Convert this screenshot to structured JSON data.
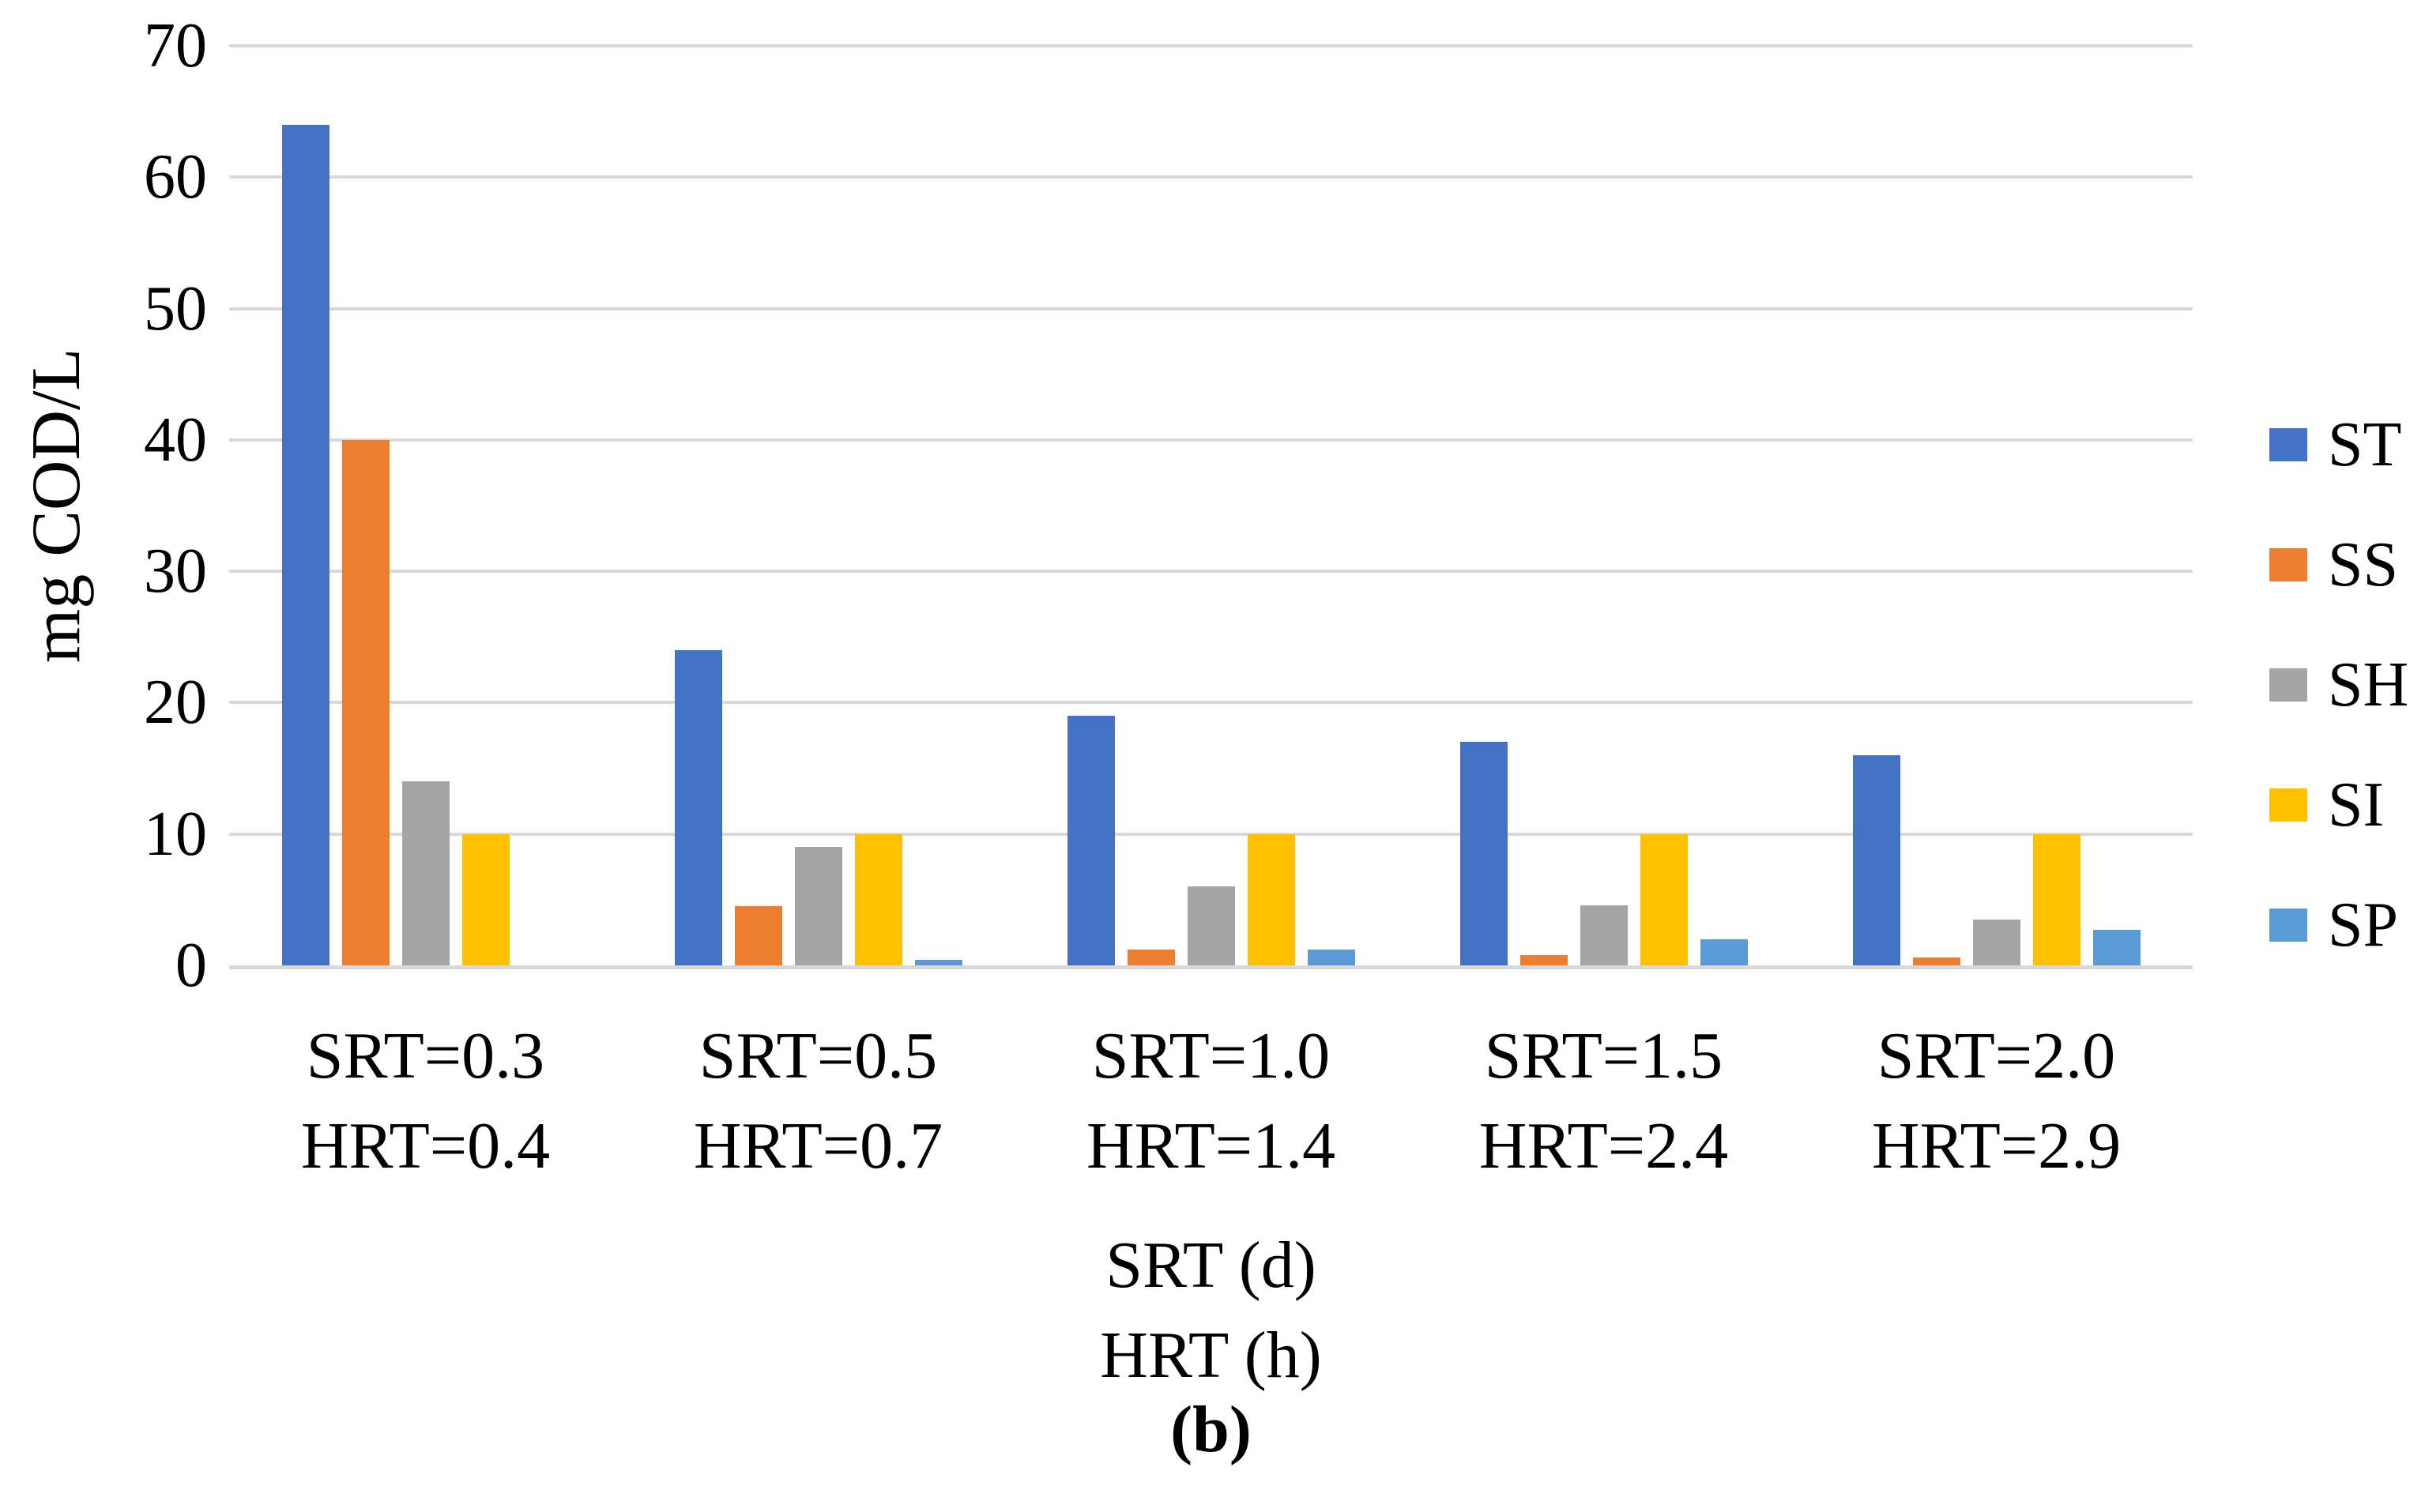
{
  "figure": {
    "caption": "(b)"
  },
  "chart_data": {
    "type": "bar",
    "title": "",
    "ylabel": "mg COD/L",
    "xlabel_lines": [
      "SRT (d)",
      "HRT (h)"
    ],
    "ylim": [
      0,
      70
    ],
    "yticks": [
      0,
      10,
      20,
      30,
      40,
      50,
      60,
      70
    ],
    "grid": "horizontal",
    "gridline_color": "#D9D9D9",
    "axis_line_color": "#D9D9D9",
    "legend_position": "right",
    "categories": [
      {
        "line1": "SRT=0.3",
        "line2": "HRT=0.4"
      },
      {
        "line1": "SRT=0.5",
        "line2": "HRT=0.7"
      },
      {
        "line1": "SRT=1.0",
        "line2": "HRT=1.4"
      },
      {
        "line1": "SRT=1.5",
        "line2": "HRT=2.4"
      },
      {
        "line1": "SRT=2.0",
        "line2": "HRT=2.9"
      }
    ],
    "series": [
      {
        "name": "ST",
        "color": "#4472C4",
        "values": [
          64,
          24,
          19,
          17,
          16
        ]
      },
      {
        "name": "SS",
        "color": "#ED7D31",
        "values": [
          40,
          4.5,
          1.2,
          0.8,
          0.6
        ]
      },
      {
        "name": "SH",
        "color": "#A5A5A5",
        "values": [
          14,
          9,
          6,
          4.6,
          3.5
        ]
      },
      {
        "name": "SI",
        "color": "#FFC000",
        "values": [
          10,
          10,
          10,
          10,
          10
        ]
      },
      {
        "name": "SP",
        "color": "#5B9BD5",
        "values": [
          0,
          0.4,
          1.2,
          2,
          2.7
        ]
      }
    ]
  }
}
